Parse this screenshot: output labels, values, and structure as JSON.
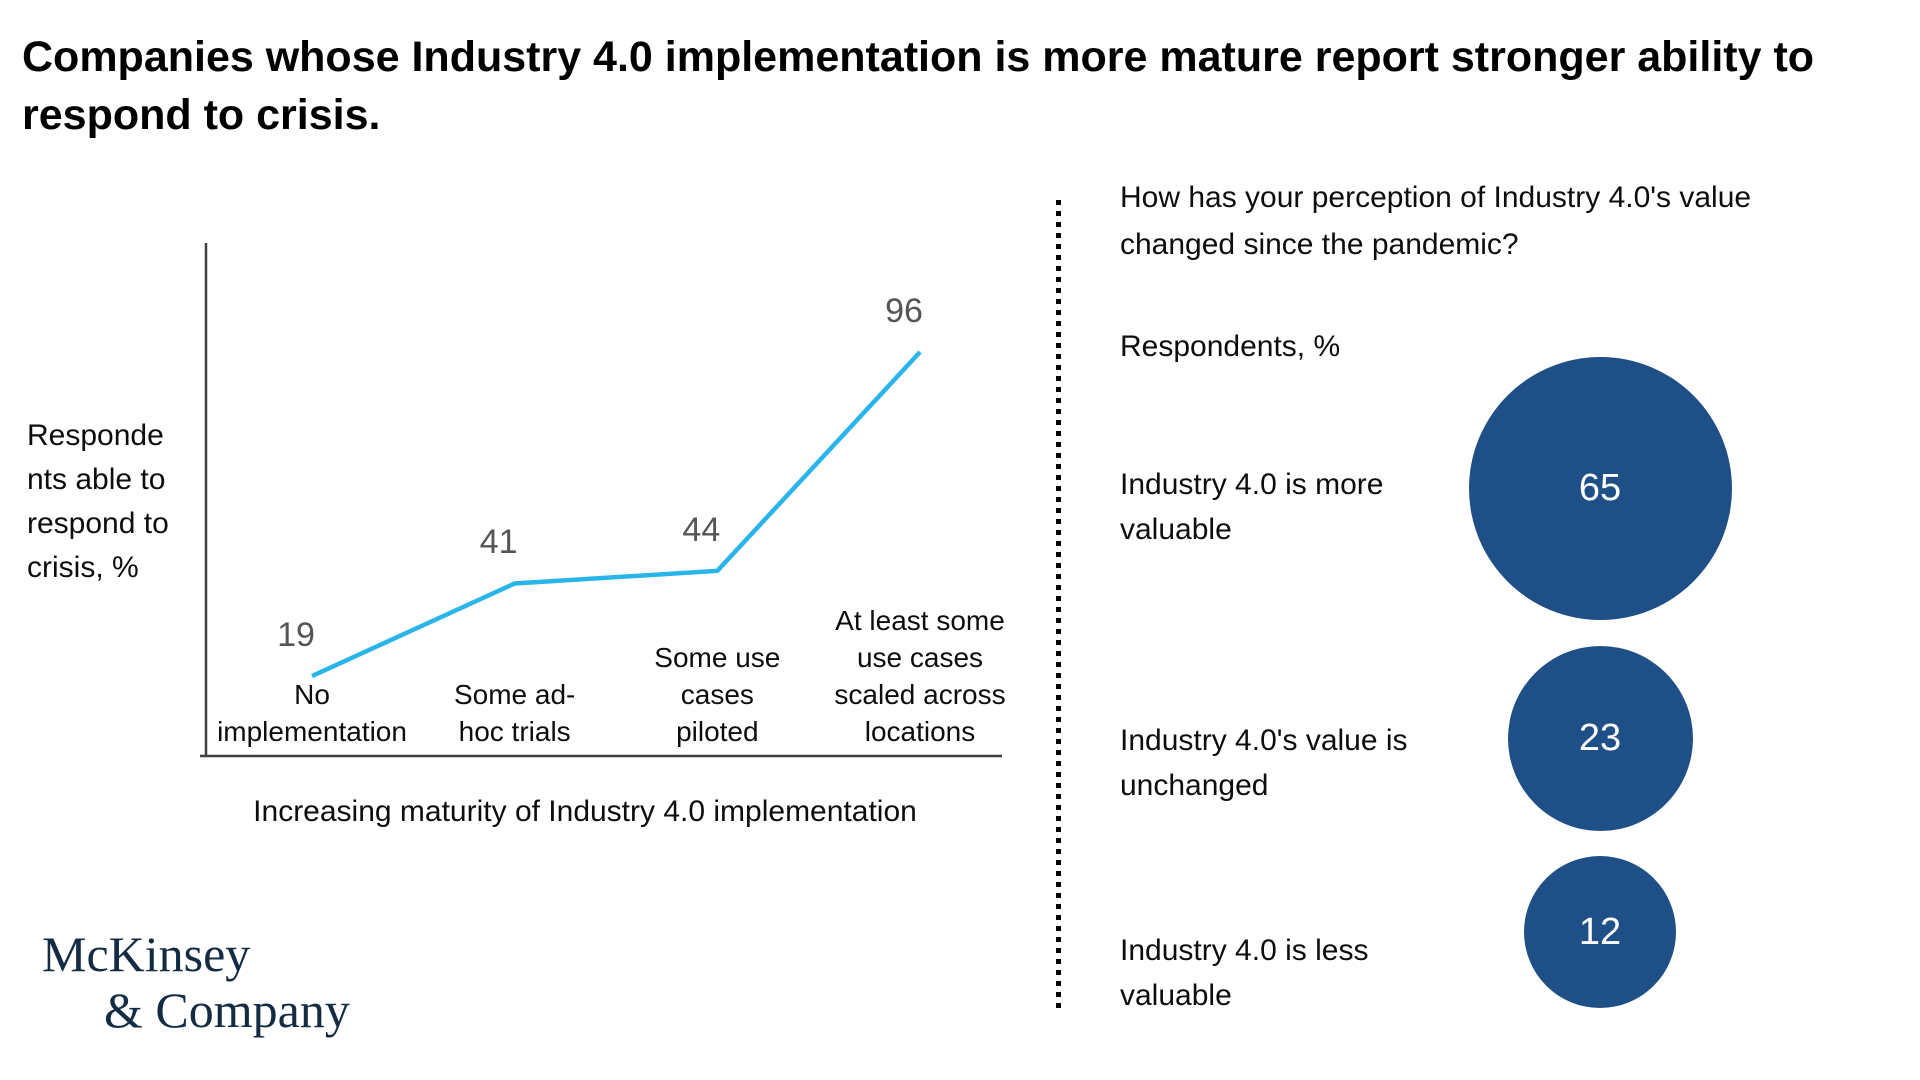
{
  "title": "Companies whose Industry 4.0 implementation is more mature report stronger ability to\nrespond to crisis.",
  "chart_data": [
    {
      "type": "line",
      "categories": [
        "No\nimplementation",
        "Some ad-\nhoc trials",
        "Some use\ncases\npiloted",
        "At least some\nuse cases\nscaled across\nlocations"
      ],
      "values": [
        19,
        41,
        44,
        96
      ],
      "value_labels": [
        "19",
        "41",
        "44",
        "96"
      ],
      "xlabel": "Increasing maturity of Industry 4.0 implementation",
      "ylabel": "Responde\nnts able to\nrespond to\ncrisis, %",
      "ylabel_full": "Respondents able to respond to crisis, %",
      "ylim": [
        0,
        120
      ],
      "grid": false,
      "legend": false,
      "line_color": "#29b5ea",
      "axis_color": "#3f3f3f",
      "value_label_color": "#555555"
    },
    {
      "type": "bubble",
      "question": "How has your perception of Industry 4.0's value\nchanged since the pandemic?",
      "unit_label": "Respondents, %",
      "categories": [
        "Industry 4.0 is more\nvaluable",
        "Industry 4.0's value is\nunchanged",
        "Industry 4.0 is less\nvaluable"
      ],
      "values": [
        65,
        23,
        12
      ],
      "bubble_color": "#1e4f87",
      "value_text_color": "#ffffff"
    }
  ],
  "logo": {
    "line1": "McKinsey",
    "line2": "& Company",
    "color": "#132c44"
  }
}
